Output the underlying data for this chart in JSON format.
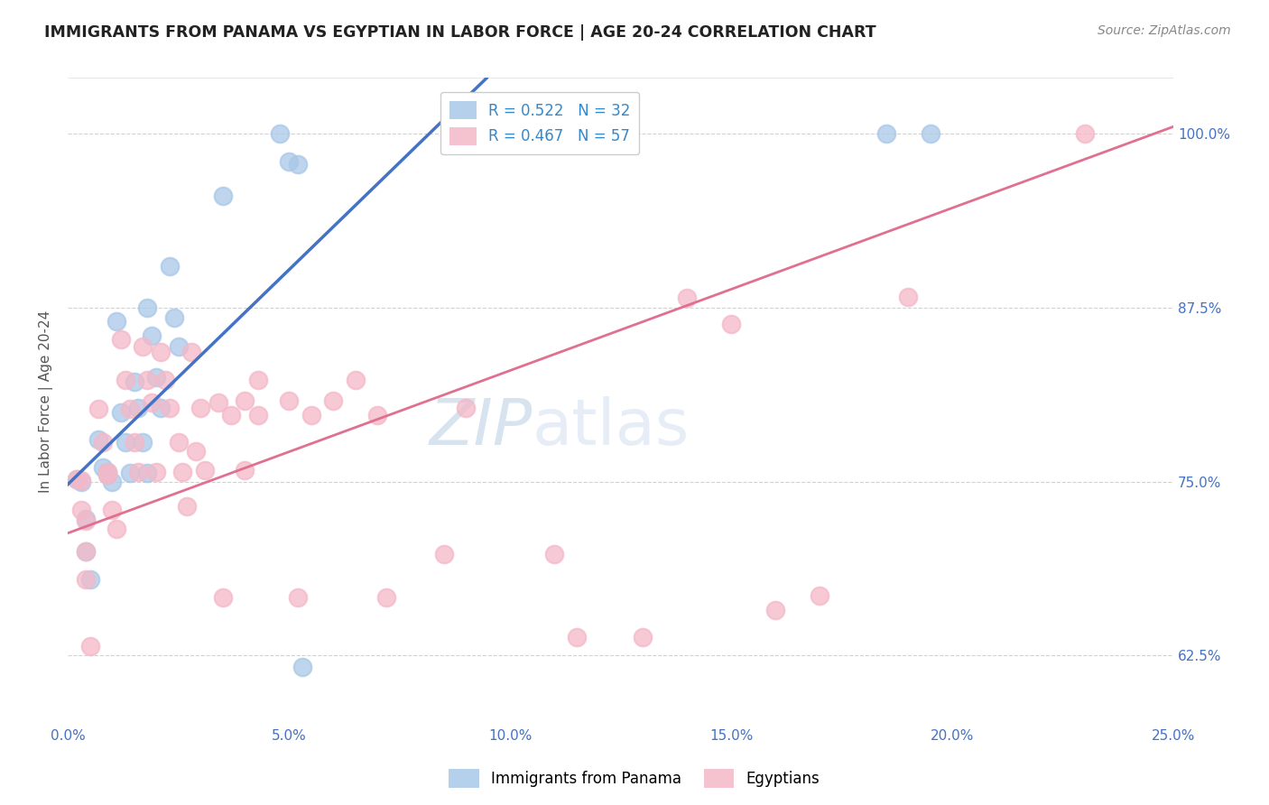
{
  "title": "IMMIGRANTS FROM PANAMA VS EGYPTIAN IN LABOR FORCE | AGE 20-24 CORRELATION CHART",
  "source": "Source: ZipAtlas.com",
  "xlabel_ticks": [
    "0.0%",
    "5.0%",
    "10.0%",
    "15.0%",
    "20.0%",
    "25.0%"
  ],
  "ylabel_ticks": [
    "62.5%",
    "75.0%",
    "87.5%",
    "100.0%"
  ],
  "ylabel_label": "In Labor Force | Age 20-24",
  "xlim": [
    0.0,
    0.25
  ],
  "ylim": [
    0.575,
    1.04
  ],
  "panama_scatter_x": [
    0.002,
    0.003,
    0.004,
    0.004,
    0.005,
    0.007,
    0.008,
    0.009,
    0.009,
    0.01,
    0.011,
    0.012,
    0.013,
    0.014,
    0.015,
    0.016,
    0.017,
    0.018,
    0.018,
    0.019,
    0.02,
    0.021,
    0.023,
    0.024,
    0.025,
    0.035,
    0.048,
    0.05,
    0.052,
    0.053,
    0.185,
    0.195
  ],
  "panama_scatter_y": [
    0.752,
    0.75,
    0.723,
    0.7,
    0.68,
    0.78,
    0.76,
    0.757,
    0.755,
    0.75,
    0.865,
    0.8,
    0.778,
    0.756,
    0.822,
    0.803,
    0.778,
    0.756,
    0.875,
    0.855,
    0.825,
    0.803,
    0.905,
    0.868,
    0.847,
    0.955,
    1.0,
    0.98,
    0.978,
    0.617,
    1.0,
    1.0
  ],
  "egypt_scatter_x": [
    0.002,
    0.003,
    0.003,
    0.004,
    0.004,
    0.004,
    0.005,
    0.007,
    0.008,
    0.009,
    0.009,
    0.01,
    0.011,
    0.012,
    0.013,
    0.014,
    0.015,
    0.016,
    0.017,
    0.018,
    0.019,
    0.02,
    0.021,
    0.022,
    0.023,
    0.025,
    0.026,
    0.027,
    0.028,
    0.029,
    0.03,
    0.031,
    0.034,
    0.035,
    0.037,
    0.04,
    0.04,
    0.043,
    0.043,
    0.05,
    0.052,
    0.055,
    0.06,
    0.065,
    0.07,
    0.072,
    0.085,
    0.09,
    0.11,
    0.115,
    0.13,
    0.14,
    0.15,
    0.16,
    0.17,
    0.19,
    0.23
  ],
  "egypt_scatter_y": [
    0.752,
    0.751,
    0.73,
    0.722,
    0.7,
    0.68,
    0.632,
    0.802,
    0.778,
    0.757,
    0.755,
    0.73,
    0.716,
    0.852,
    0.823,
    0.802,
    0.778,
    0.757,
    0.847,
    0.823,
    0.807,
    0.757,
    0.843,
    0.823,
    0.803,
    0.778,
    0.757,
    0.732,
    0.843,
    0.772,
    0.803,
    0.758,
    0.807,
    0.667,
    0.798,
    0.808,
    0.758,
    0.823,
    0.798,
    0.808,
    0.667,
    0.798,
    0.808,
    0.823,
    0.798,
    0.667,
    0.698,
    0.803,
    0.698,
    0.638,
    0.638,
    0.882,
    0.863,
    0.658,
    0.668,
    0.883,
    1.0
  ],
  "panama_color": "#a8c8e8",
  "egypt_color": "#f4b8c8",
  "trendline_panama_color": "#4472c4",
  "trendline_egypt_color": "#e07090",
  "background_color": "#ffffff",
  "grid_color": "#cccccc",
  "panama_trendline_x0": 0.0,
  "panama_trendline_y0": 0.748,
  "panama_trendline_x1": 0.085,
  "panama_trendline_y1": 1.01,
  "egypt_trendline_x0": 0.0,
  "egypt_trendline_y0": 0.713,
  "egypt_trendline_x1": 0.25,
  "egypt_trendline_y1": 1.005
}
